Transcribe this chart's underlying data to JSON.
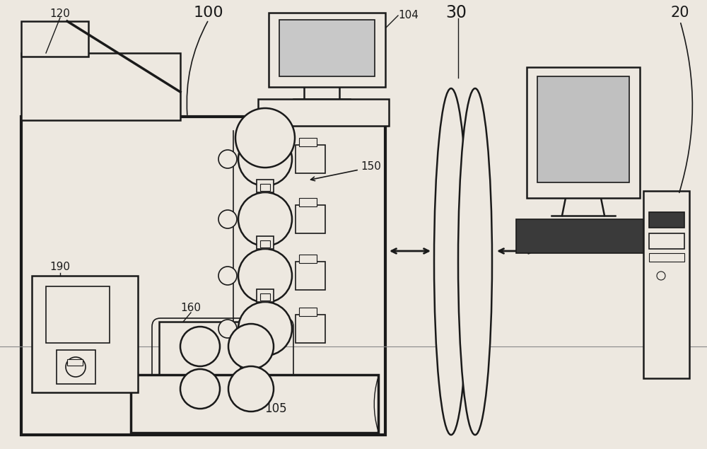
{
  "bg_color": "#ede8e0",
  "line_color": "#1a1a1a",
  "figsize": [
    10.0,
    6.35
  ],
  "lw_main": 2.5,
  "lw_med": 1.8,
  "lw_thin": 1.2
}
